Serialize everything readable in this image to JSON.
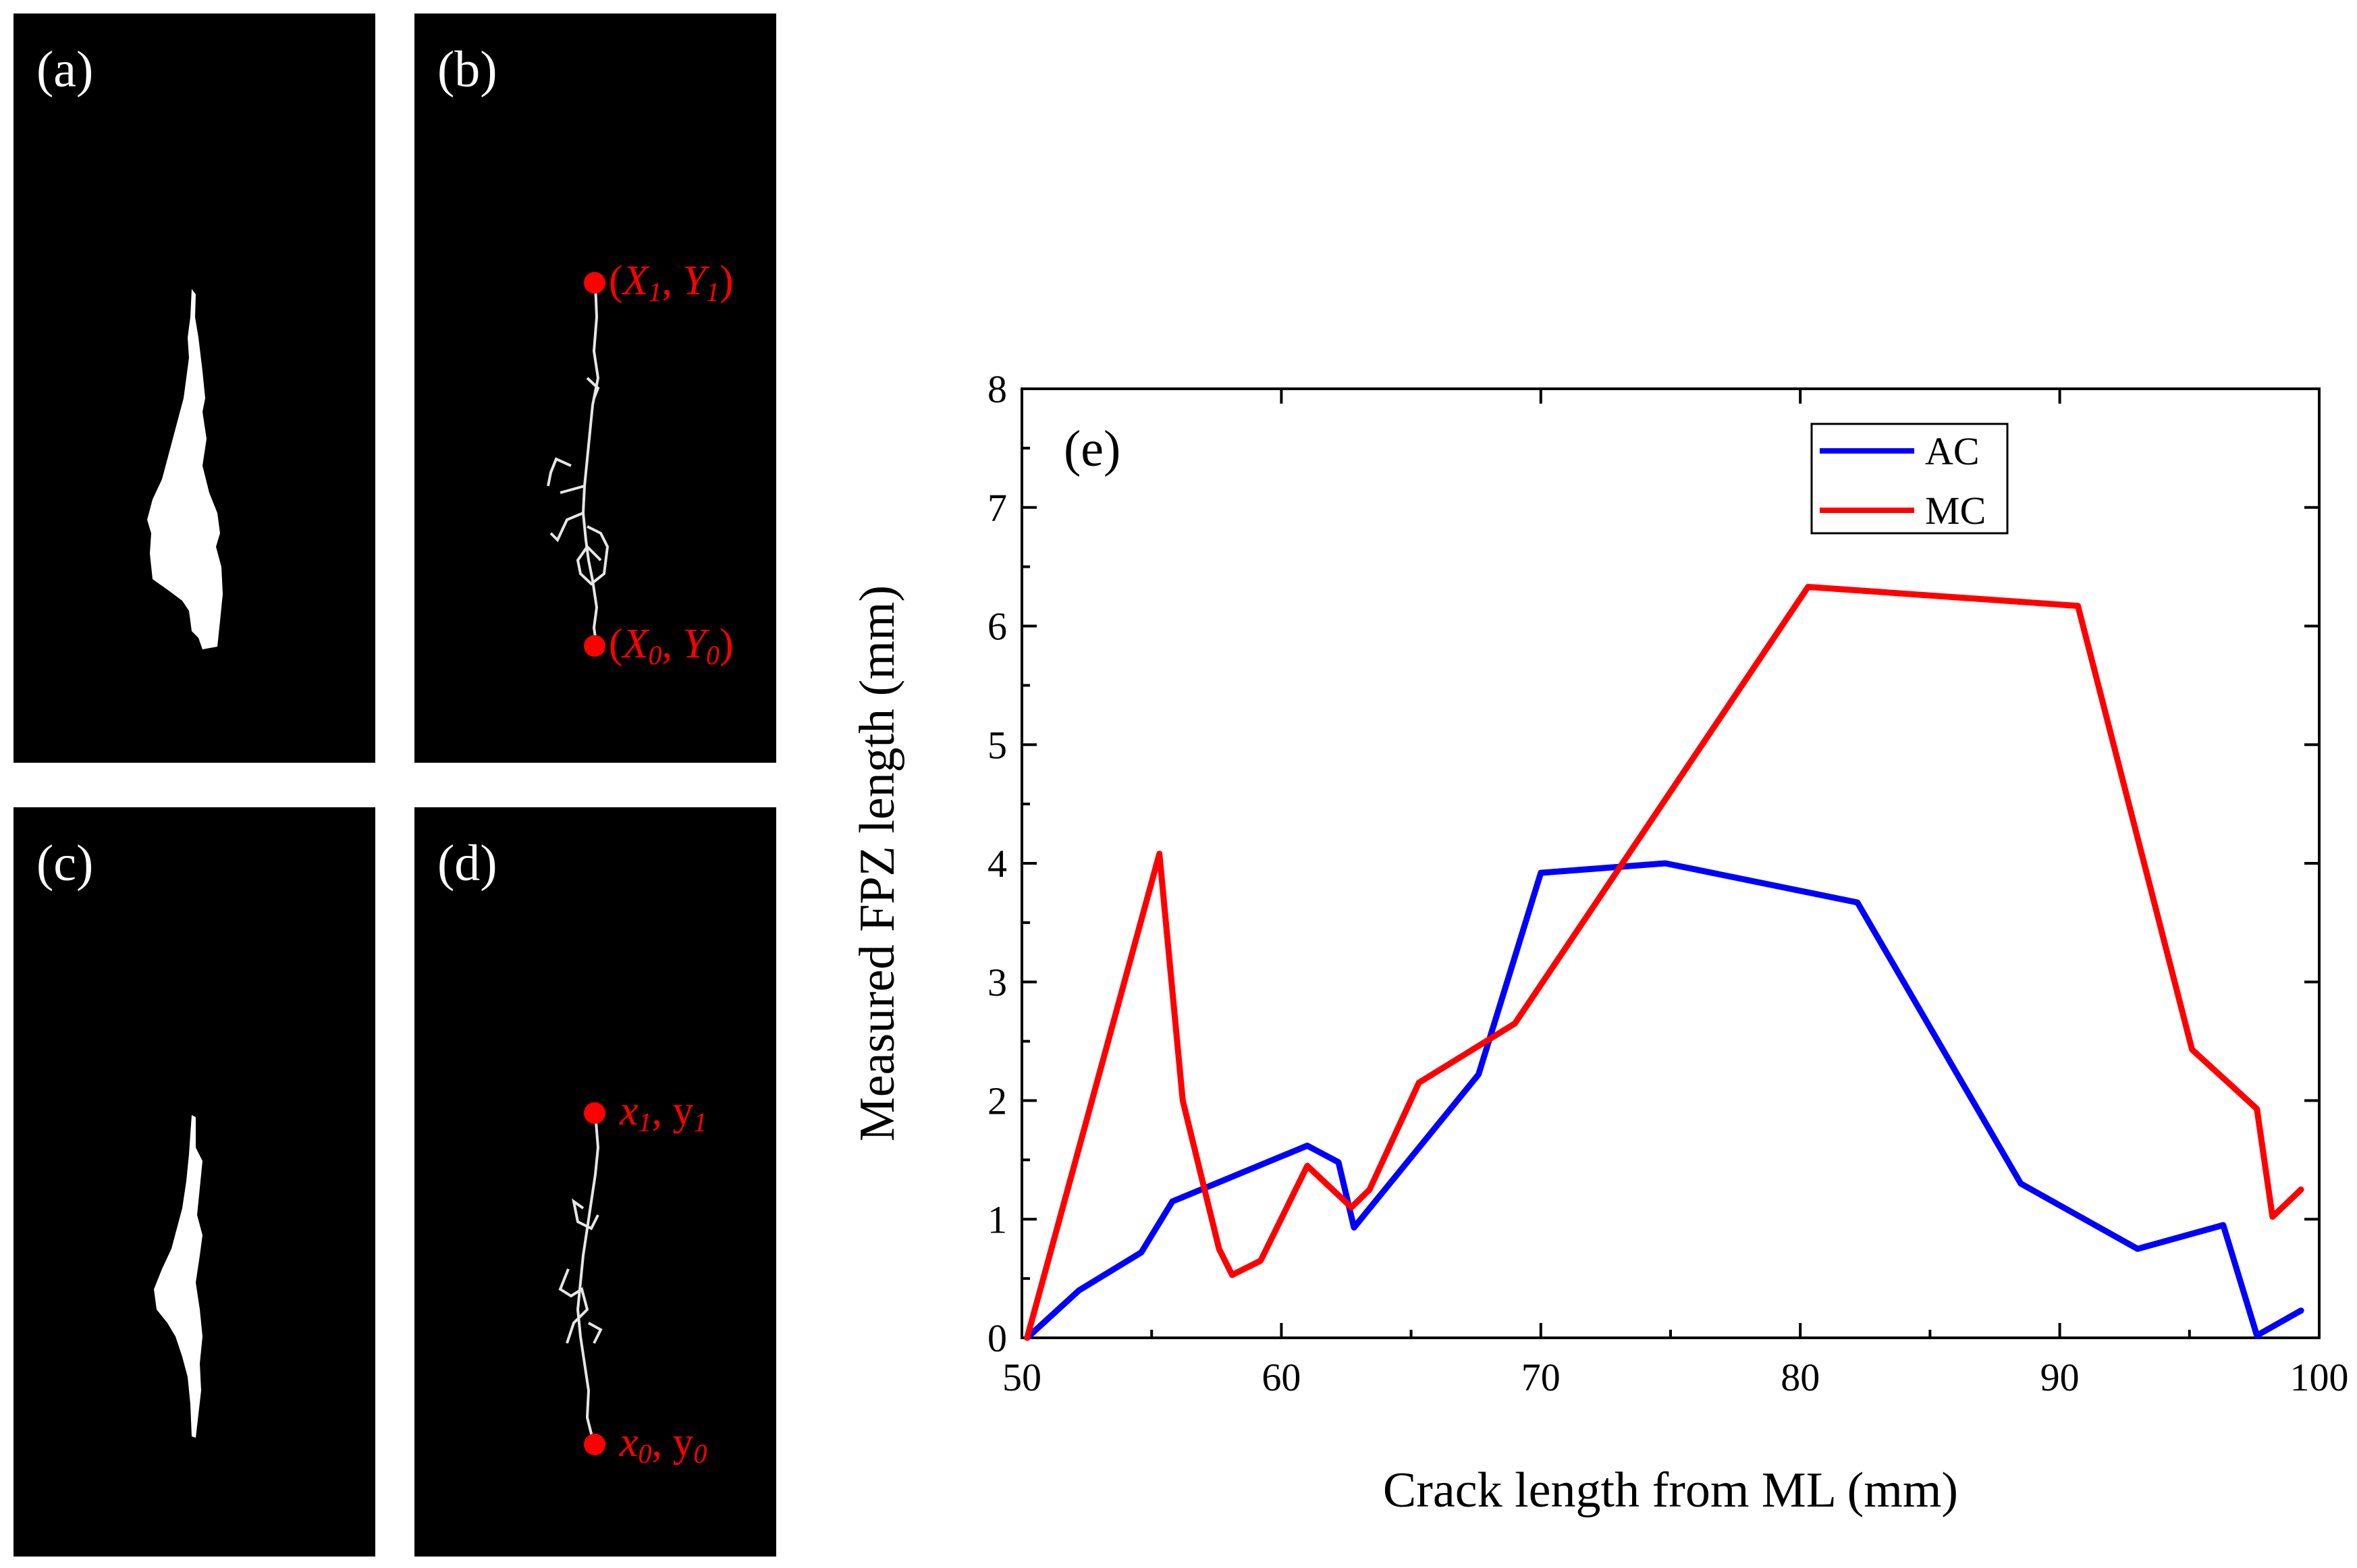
{
  "panels": {
    "a": {
      "label": "(a)"
    },
    "b": {
      "label": "(b)",
      "point_top": {
        "x": "X",
        "x_sub": "1",
        "y": "Y",
        "y_sub": "1"
      },
      "point_bottom": {
        "x": "X",
        "x_sub": "0",
        "y": "Y",
        "y_sub": "0"
      }
    },
    "c": {
      "label": "(c)"
    },
    "d": {
      "label": "(d)",
      "point_top": {
        "x": "x",
        "x_sub": "1",
        "y": "y",
        "y_sub": "1"
      },
      "point_bottom": {
        "x": "x",
        "x_sub": "0",
        "y": "y",
        "y_sub": "0"
      }
    },
    "e": {
      "label": "(e)"
    }
  },
  "colors": {
    "panel_bg": "#000000",
    "crack": "#ffffff",
    "marker": "#ff0000",
    "ac": "#0000ff",
    "mc": "#ff0000"
  },
  "chart_data": {
    "type": "line",
    "title": "",
    "xlabel": "Crack length from ML (mm)",
    "ylabel": "Measured FPZ length (mm)",
    "xlim": [
      50,
      100
    ],
    "ylim": [
      0,
      8
    ],
    "xticks": [
      50,
      60,
      70,
      80,
      90,
      100
    ],
    "yticks": [
      0,
      1,
      2,
      3,
      4,
      5,
      6,
      7,
      8
    ],
    "legend_position": "top-right",
    "series": [
      {
        "name": "AC",
        "color": "#0000ff",
        "x": [
          50.2,
          52.2,
          54.6,
          55.8,
          61.0,
          62.2,
          62.8,
          67.6,
          70.0,
          74.8,
          82.2,
          88.5,
          93.0,
          96.3,
          97.6,
          99.3
        ],
        "y": [
          0.0,
          0.4,
          0.72,
          1.15,
          1.62,
          1.48,
          0.93,
          2.22,
          3.92,
          4.0,
          3.67,
          1.3,
          0.75,
          0.95,
          0.02,
          0.23
        ]
      },
      {
        "name": "MC",
        "color": "#ff0000",
        "x": [
          50.2,
          55.3,
          56.2,
          57.6,
          58.1,
          59.2,
          61.0,
          62.7,
          63.4,
          65.3,
          69.0,
          80.3,
          90.7,
          95.1,
          97.6,
          98.2,
          99.3
        ],
        "y": [
          0.0,
          4.08,
          2.0,
          0.75,
          0.53,
          0.65,
          1.45,
          1.1,
          1.25,
          2.15,
          2.65,
          6.33,
          6.17,
          2.43,
          1.93,
          1.02,
          1.25
        ]
      }
    ]
  }
}
